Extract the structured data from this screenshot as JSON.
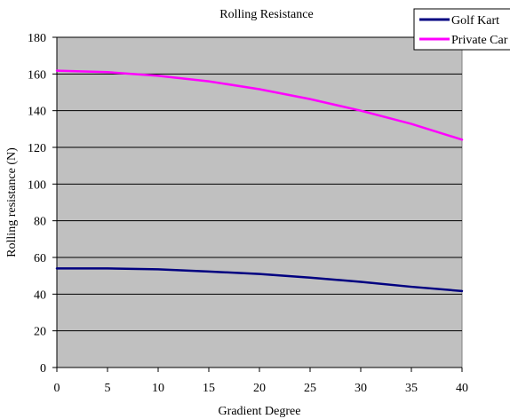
{
  "chart_data": {
    "type": "line",
    "title": "Rolling Resistance",
    "xlabel": "Gradient Degree",
    "ylabel": "Rolling resistance (N)",
    "x": [
      0,
      5,
      10,
      15,
      20,
      25,
      30,
      35,
      40
    ],
    "xlim": [
      0,
      40
    ],
    "ylim": [
      0,
      180
    ],
    "x_ticks": [
      0,
      5,
      10,
      15,
      20,
      25,
      30,
      35,
      40
    ],
    "y_ticks": [
      0,
      20,
      40,
      60,
      80,
      100,
      120,
      140,
      160,
      180
    ],
    "grid": "horizontal",
    "plot_background": "#c0c0c0",
    "legend_position": "top-right",
    "series": [
      {
        "name": "Golf Kart",
        "color": "#000080",
        "values": [
          54,
          54,
          53.5,
          52.3,
          51,
          49,
          46.7,
          44,
          41.7
        ]
      },
      {
        "name": "Private Car",
        "color": "#ff00ff",
        "values": [
          161.8,
          161,
          159,
          156,
          151.7,
          146.3,
          140,
          132.8,
          124.2
        ]
      }
    ]
  }
}
